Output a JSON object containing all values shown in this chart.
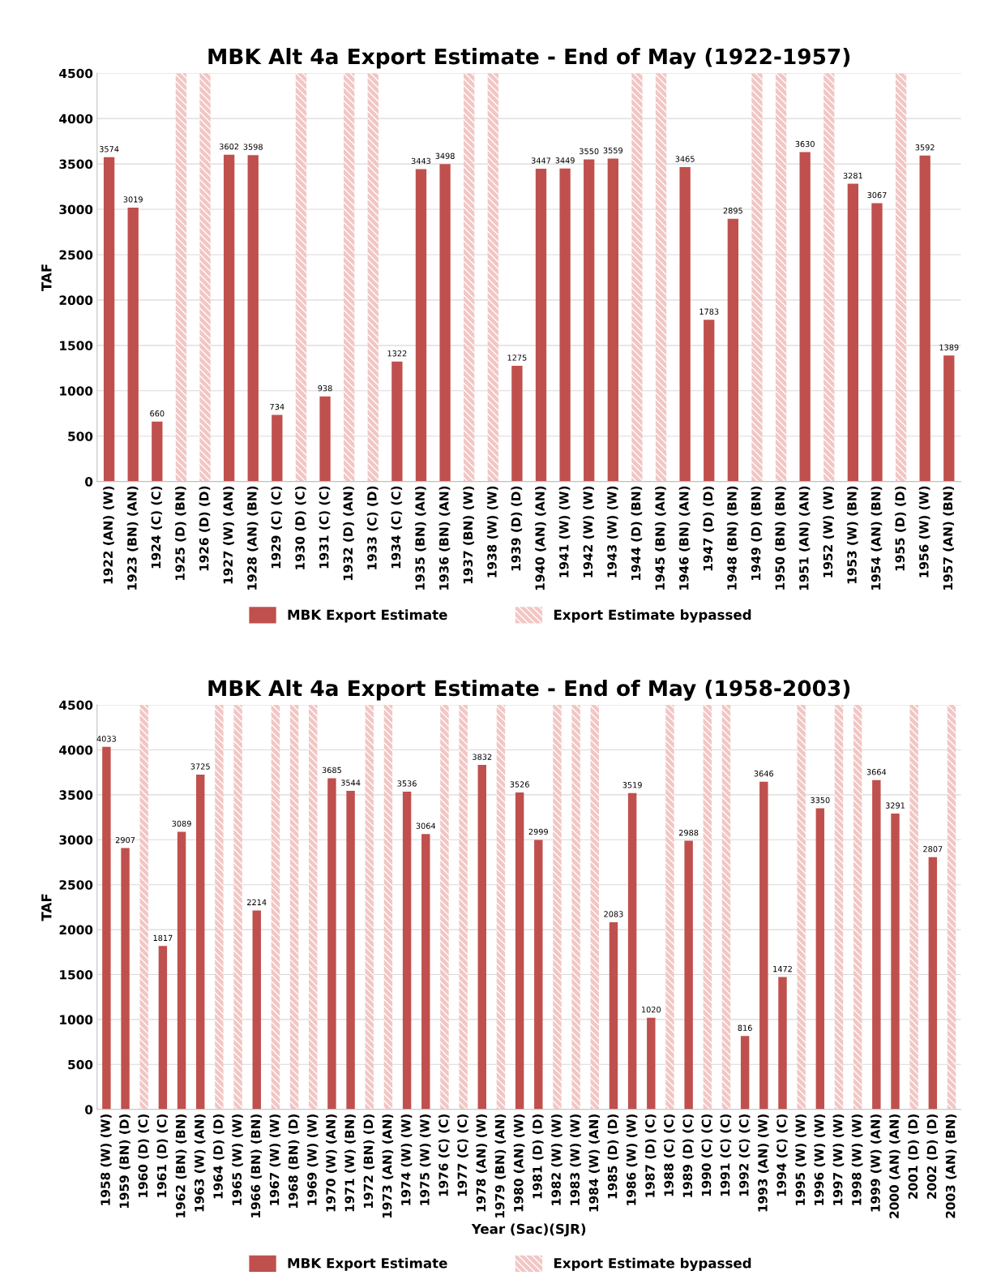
{
  "chart_data": [
    {
      "type": "bar",
      "title": "MBK Alt 4a Export Estimate - End of May (1922-1957)",
      "ylabel": "TAF",
      "categories": [
        "1922 (AN) (W)",
        "1923 (BN) (AN)",
        "1924 (C) (C)",
        "1925 (D) (BN)",
        "1926 (D) (D)",
        "1927 (W) (AN)",
        "1928 (AN) (BN)",
        "1929 (C) (C)",
        "1930 (D) (C)",
        "1931 (C) (C)",
        "1932 (D) (AN)",
        "1933 (C) (D)",
        "1934 (C) (C)",
        "1935 (BN) (AN)",
        "1936 (BN) (AN)",
        "1937 (BN) (W)",
        "1938 (W) (W)",
        "1939 (D) (D)",
        "1940 (AN) (AN)",
        "1941 (W) (W)",
        "1942 (W) (W)",
        "1943 (W) (W)",
        "1944 (D) (BN)",
        "1945 (BN) (AN)",
        "1946 (BN) (AN)",
        "1947 (D) (D)",
        "1948 (BN) (BN)",
        "1949 (D) (BN)",
        "1950 (BN) (BN)",
        "1951 (AN) (AN)",
        "1952 (W) (W)",
        "1953 (W) (BN)",
        "1954 (AN) (BN)",
        "1955 (D) (D)",
        "1956 (W) (W)",
        "1957 (AN) (BN)"
      ],
      "series": [
        {
          "name": "MBK Export Estimate",
          "color": "#c0504d",
          "values": [
            3574,
            3019,
            660,
            null,
            null,
            3602,
            3598,
            734,
            null,
            938,
            null,
            null,
            1322,
            3443,
            3498,
            null,
            null,
            1275,
            3447,
            3449,
            3550,
            3559,
            null,
            null,
            3465,
            1783,
            2895,
            null,
            null,
            3630,
            null,
            3281,
            3067,
            null,
            3592,
            1389
          ],
          "value_labels": [
            "3574",
            "3019",
            "660",
            null,
            null,
            "3602",
            "3598",
            "734",
            null,
            "938",
            null,
            null,
            "1322",
            "3443",
            "3498",
            null,
            null,
            "1275",
            "3447",
            "3449",
            "3550",
            "3559",
            null,
            null,
            "3465",
            "1783",
            "2895",
            null,
            null,
            "3630",
            null,
            "3281",
            "3067",
            null,
            "3592",
            "1389"
          ]
        },
        {
          "name": "Export Estimate bypassed",
          "color": "#f2c6c4",
          "values": [
            null,
            null,
            null,
            4500,
            4500,
            null,
            null,
            null,
            4500,
            null,
            4500,
            4500,
            null,
            null,
            null,
            4500,
            4500,
            null,
            null,
            null,
            null,
            null,
            4500,
            4500,
            null,
            null,
            null,
            4500,
            4500,
            null,
            4500,
            null,
            null,
            4500,
            null,
            null
          ]
        }
      ],
      "ylim": [
        0,
        4500
      ],
      "yticks": [
        0,
        500,
        1000,
        1500,
        2000,
        2500,
        3000,
        3500,
        4000,
        4500
      ],
      "grid": "y",
      "legend": "bottom"
    },
    {
      "type": "bar",
      "title": "MBK Alt 4a Export Estimate - End of May (1958-2003)",
      "ylabel": "TAF",
      "xlabel": "Year (Sac)(SJR)",
      "categories": [
        "1958 (W) (W)",
        "1959 (BN) (D)",
        "1960 (D) (C)",
        "1961 (D) (C)",
        "1962 (BN) (BN)",
        "1963 (W) (AN)",
        "1964 (D) (D)",
        "1965 (W) (W)",
        "1966 (BN) (BN)",
        "1967 (W) (W)",
        "1968 (BN) (D)",
        "1969 (W) (W)",
        "1970 (W) (AN)",
        "1971 (W) (BN)",
        "1972 (BN) (D)",
        "1973 (AN) (AN)",
        "1974 (W) (W)",
        "1975 (W) (W)",
        "1976 (C) (C)",
        "1977 (C) (C)",
        "1978 (AN) (W)",
        "1979 (BN) (AN)",
        "1980 (AN) (W)",
        "1981 (D) (D)",
        "1982 (W) (W)",
        "1983 (W) (W)",
        "1984 (W) (AN)",
        "1985 (D) (D)",
        "1986 (W) (W)",
        "1987 (D) (C)",
        "1988 (C) (C)",
        "1989 (D) (C)",
        "1990 (C) (C)",
        "1991 (C) (C)",
        "1992 (C) (C)",
        "1993 (AN) (W)",
        "1994 (C) (C)",
        "1995 (W) (W)",
        "1996 (W) (W)",
        "1997 (W) (W)",
        "1998 (W) (W)",
        "1999 (W) (AN)",
        "2000 (AN) (AN)",
        "2001 (D) (D)",
        "2002 (D) (D)",
        "2003 (AN) (BN)"
      ],
      "series": [
        {
          "name": "MBK Export Estimate",
          "color": "#c0504d",
          "values": [
            4033,
            2907,
            null,
            1817,
            3089,
            3725,
            null,
            null,
            2214,
            null,
            null,
            null,
            3685,
            3544,
            null,
            null,
            3536,
            3064,
            null,
            null,
            3832,
            null,
            3526,
            2999,
            null,
            null,
            null,
            2083,
            3519,
            1020,
            null,
            2988,
            null,
            null,
            816,
            3646,
            1472,
            null,
            3350,
            null,
            null,
            3664,
            3291,
            null,
            2807,
            null
          ],
          "value_labels": [
            "4033",
            "2907",
            null,
            "1817",
            "3089",
            "3725",
            null,
            null,
            "2214",
            null,
            null,
            null,
            "3685",
            "3544",
            null,
            null,
            "3536",
            "3064",
            null,
            null,
            "3832",
            null,
            "3526",
            "2999",
            null,
            null,
            null,
            "2083",
            "3519",
            "1020",
            null,
            "2988",
            null,
            null,
            "816",
            "3646",
            "1472",
            null,
            "3350",
            null,
            null,
            "3664",
            "3291",
            null,
            "2807",
            null
          ]
        },
        {
          "name": "Export Estimate bypassed",
          "color": "#f2c6c4",
          "values": [
            null,
            null,
            4500,
            null,
            null,
            null,
            4500,
            4500,
            null,
            4500,
            4500,
            4500,
            null,
            null,
            4500,
            4500,
            null,
            null,
            4500,
            4500,
            null,
            4500,
            null,
            null,
            4500,
            4500,
            4500,
            null,
            null,
            null,
            4500,
            null,
            4500,
            4500,
            null,
            null,
            null,
            4500,
            null,
            4500,
            4500,
            null,
            null,
            4500,
            null,
            4500
          ]
        }
      ],
      "ylim": [
        0,
        4500
      ],
      "yticks": [
        0,
        500,
        1000,
        1500,
        2000,
        2500,
        3000,
        3500,
        4000,
        4500
      ],
      "grid": "y",
      "legend": "bottom"
    }
  ]
}
